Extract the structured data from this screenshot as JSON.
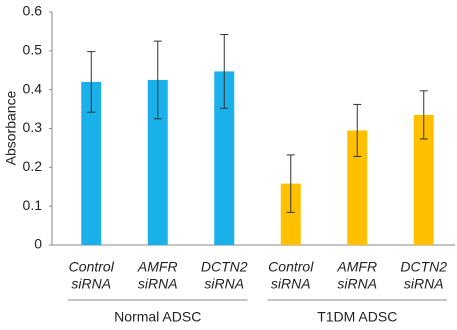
{
  "chart_data": {
    "type": "bar",
    "y_label": "Absorbance",
    "ylim": [
      0,
      0.6
    ],
    "yticks": [
      0,
      0.1,
      0.2,
      0.3,
      0.4,
      0.5,
      0.6
    ],
    "groups": [
      {
        "name": "Normal ADSC",
        "color": "#1ab0ea",
        "categories": [
          [
            "Control",
            "siRNA"
          ],
          [
            "AMFR",
            "siRNA"
          ],
          [
            "DCTN2",
            "siRNA"
          ]
        ],
        "values": [
          0.42,
          0.425,
          0.447
        ],
        "errors": [
          0.078,
          0.1,
          0.095
        ]
      },
      {
        "name": "T1DM ADSC",
        "color": "#ffc000",
        "categories": [
          [
            "Control",
            "siRNA"
          ],
          [
            "AMFR",
            "siRNA"
          ],
          [
            "DCTN2",
            "siRNA"
          ]
        ],
        "values": [
          0.158,
          0.295,
          0.335
        ],
        "errors": [
          0.074,
          0.067,
          0.062
        ]
      }
    ]
  }
}
